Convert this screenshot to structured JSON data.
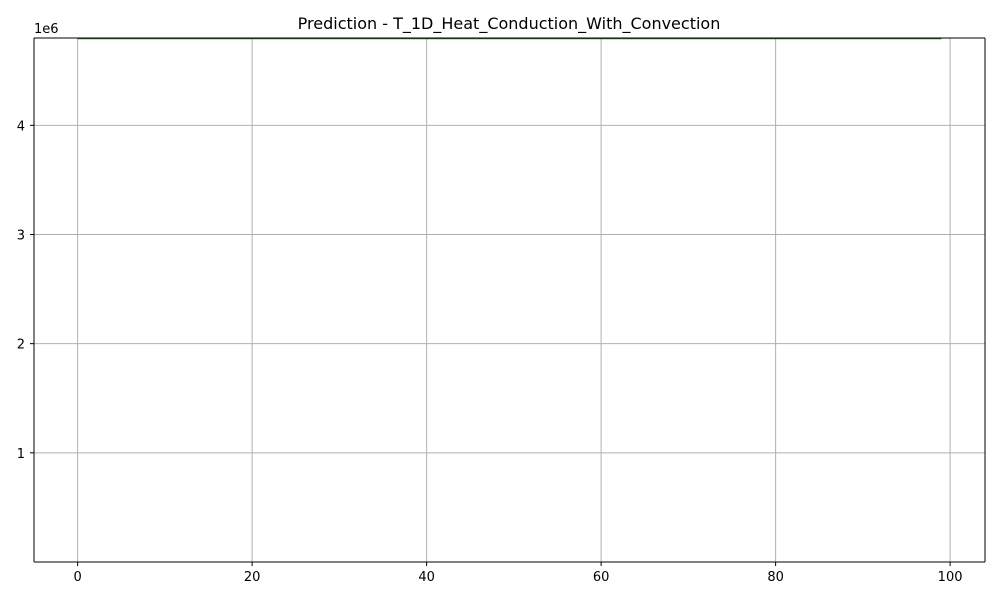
{
  "chart_data": {
    "type": "line",
    "title": "Prediction - T_1D_Heat_Conduction_With_Convection",
    "xlabel": "",
    "ylabel": "",
    "y_offset_label": "1e6",
    "xlim": [
      -5,
      104
    ],
    "ylim": [
      0,
      4800000
    ],
    "x_ticks": [
      0,
      20,
      40,
      60,
      80,
      100
    ],
    "x_tick_labels": [
      "0",
      "20",
      "40",
      "60",
      "80",
      "100"
    ],
    "y_ticks": [
      1000000,
      2000000,
      3000000,
      4000000
    ],
    "y_tick_labels": [
      "1",
      "2",
      "3",
      "4"
    ],
    "grid": true,
    "series": [
      {
        "color": "#1a7a1a",
        "x_start": 0,
        "x_end": 99,
        "value": 4800000
      }
    ]
  }
}
